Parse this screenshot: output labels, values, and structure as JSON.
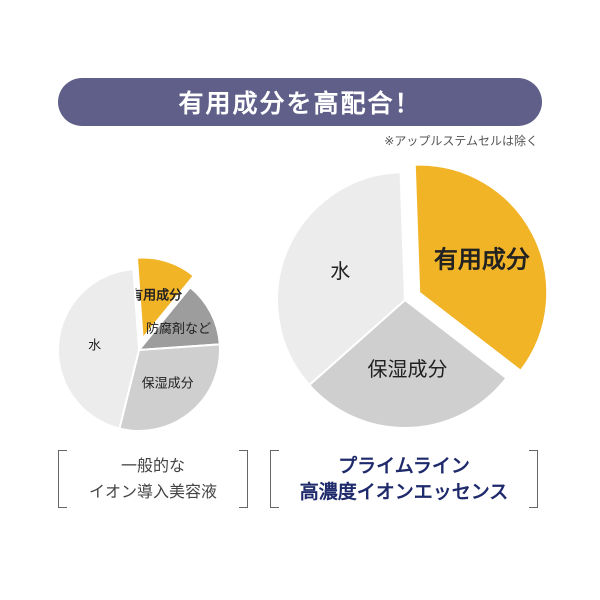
{
  "banner": {
    "title": "有用成分を高配合！"
  },
  "note": "※アップルステムセルは除く",
  "chart_data": [
    {
      "type": "pie",
      "slices": [
        {
          "label": "有用成分",
          "value": 12,
          "color": "#f2b427",
          "exploded": true
        },
        {
          "label": "防腐剤など",
          "value": 13,
          "color": "#9d9d9d",
          "exploded": false
        },
        {
          "label": "保湿成分",
          "value": 30,
          "color": "#cfcfcf",
          "exploded": false
        },
        {
          "label": "水",
          "value": 45,
          "color": "#ececec",
          "exploded": false
        }
      ],
      "caption_lines": [
        "一般的な",
        "イオン導入美容液"
      ]
    },
    {
      "type": "pie",
      "slices": [
        {
          "label": "有用成分",
          "value": 36,
          "color": "#f2b427",
          "exploded": true
        },
        {
          "label": "保湿成分",
          "value": 28,
          "color": "#cfcfcf",
          "exploded": false
        },
        {
          "label": "水",
          "value": 36,
          "color": "#ececec",
          "exploded": false
        }
      ],
      "caption_lines": [
        "プライムライン",
        "高濃度イオンエッセンス"
      ]
    }
  ]
}
